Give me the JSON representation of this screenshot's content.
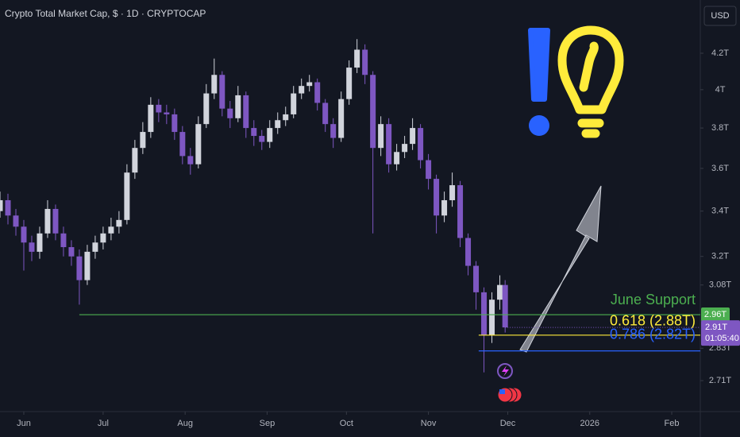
{
  "chart_data": {
    "type": "candlestick",
    "title": "Crypto Total Market Cap, $ · 1D · CRYPTOCAP",
    "currency": "USD",
    "log_scale": true,
    "grid": false,
    "up_color": "#d1d4dc",
    "down_color": "#7e57c2",
    "x": [
      -9,
      -6,
      -3,
      0,
      3,
      6,
      9,
      12,
      15,
      18,
      21,
      24,
      27,
      30,
      33,
      36,
      39,
      42,
      45,
      48,
      51,
      54,
      57,
      60,
      63,
      66,
      69,
      72,
      75,
      78,
      81,
      84,
      87,
      90,
      93,
      96,
      99,
      102,
      105,
      108,
      111,
      114,
      117,
      120,
      123,
      126,
      129,
      132,
      135,
      138,
      141,
      144,
      147,
      150,
      153,
      156,
      159,
      162,
      165,
      168,
      171,
      174,
      177,
      180,
      182
    ],
    "open": [
      3.4,
      3.45,
      3.38,
      3.33,
      3.26,
      3.22,
      3.3,
      3.41,
      3.3,
      3.24,
      3.2,
      3.1,
      3.22,
      3.26,
      3.3,
      3.33,
      3.36,
      3.58,
      3.7,
      3.78,
      3.92,
      3.88,
      3.87,
      3.78,
      3.66,
      3.62,
      3.82,
      3.98,
      4.08,
      3.9,
      3.85,
      3.97,
      3.8,
      3.76,
      3.73,
      3.8,
      3.84,
      3.87,
      3.98,
      4.02,
      4.04,
      3.93,
      3.82,
      3.75,
      3.95,
      4.12,
      4.22,
      4.08,
      3.7,
      3.82,
      3.62,
      3.68,
      3.72,
      3.8,
      3.64,
      3.55,
      3.38,
      3.45,
      3.52,
      3.28,
      3.16,
      3.05,
      2.88,
      3.02,
      3.08
    ],
    "high": [
      3.49,
      3.48,
      3.41,
      3.36,
      3.29,
      3.33,
      3.45,
      3.43,
      3.33,
      3.27,
      3.23,
      3.25,
      3.29,
      3.33,
      3.37,
      3.4,
      3.62,
      3.74,
      3.83,
      3.96,
      3.95,
      3.92,
      3.9,
      3.81,
      3.7,
      3.86,
      4.03,
      4.17,
      4.1,
      3.94,
      4.02,
      3.99,
      3.84,
      3.79,
      3.84,
      3.88,
      3.91,
      4.02,
      4.06,
      4.08,
      4.06,
      3.95,
      3.85,
      3.99,
      4.16,
      4.28,
      4.25,
      4.1,
      3.86,
      3.85,
      3.72,
      3.76,
      3.85,
      3.82,
      3.67,
      3.57,
      3.49,
      3.58,
      3.54,
      3.3,
      3.18,
      3.07,
      3.05,
      3.12,
      3.1
    ],
    "low": [
      3.37,
      3.34,
      3.29,
      3.14,
      3.18,
      3.19,
      3.28,
      3.27,
      3.2,
      3.16,
      3.0,
      3.08,
      3.19,
      3.23,
      3.27,
      3.3,
      3.34,
      3.55,
      3.67,
      3.75,
      3.83,
      3.82,
      3.74,
      3.62,
      3.57,
      3.6,
      3.8,
      3.95,
      3.86,
      3.8,
      3.83,
      3.75,
      3.71,
      3.69,
      3.7,
      3.77,
      3.81,
      3.85,
      3.95,
      3.99,
      3.89,
      3.78,
      3.7,
      3.73,
      3.92,
      4.09,
      4.03,
      3.3,
      3.66,
      3.58,
      3.59,
      3.65,
      3.69,
      3.6,
      3.5,
      3.3,
      3.35,
      3.42,
      3.24,
      3.12,
      2.98,
      2.74,
      2.85,
      2.98,
      2.89
    ],
    "close": [
      3.45,
      3.38,
      3.33,
      3.26,
      3.22,
      3.3,
      3.41,
      3.3,
      3.24,
      3.2,
      3.1,
      3.22,
      3.26,
      3.3,
      3.33,
      3.36,
      3.58,
      3.7,
      3.78,
      3.92,
      3.88,
      3.87,
      3.78,
      3.66,
      3.62,
      3.82,
      3.98,
      4.08,
      3.9,
      3.85,
      3.97,
      3.8,
      3.76,
      3.73,
      3.8,
      3.84,
      3.87,
      3.98,
      4.02,
      4.04,
      3.93,
      3.82,
      3.75,
      3.95,
      4.12,
      4.22,
      4.08,
      3.7,
      3.82,
      3.62,
      3.68,
      3.72,
      3.8,
      3.64,
      3.55,
      3.38,
      3.45,
      3.52,
      3.28,
      3.16,
      3.05,
      2.88,
      3.02,
      3.08,
      2.91
    ],
    "xlim": [
      -9,
      255.8
    ],
    "ylim": [
      2.6,
      4.51
    ],
    "xticks": [
      {
        "value": 0,
        "label": "Jun"
      },
      {
        "value": 30,
        "label": "Jul"
      },
      {
        "value": 61,
        "label": "Aug"
      },
      {
        "value": 92,
        "label": "Sep"
      },
      {
        "value": 122,
        "label": "Oct"
      },
      {
        "value": 153,
        "label": "Nov"
      },
      {
        "value": 183,
        "label": "Dec"
      },
      {
        "value": 214,
        "label": "2026"
      },
      {
        "value": 245,
        "label": "Feb"
      }
    ],
    "yticks": [
      {
        "value": 4.2,
        "label": "4.2T"
      },
      {
        "value": 4,
        "label": "4T"
      },
      {
        "value": 3.8,
        "label": "3.8T"
      },
      {
        "value": 3.6,
        "label": "3.6T"
      },
      {
        "value": 3.4,
        "label": "3.4T"
      },
      {
        "value": 3.2,
        "label": "3.2T"
      },
      {
        "value": 3.08,
        "label": "3.08T"
      },
      {
        "value": 2.83,
        "label": "2.83T"
      },
      {
        "value": 2.71,
        "label": "2.71T"
      }
    ],
    "levels": [
      {
        "name": "June Support",
        "value": 2.96,
        "label": "2.96T",
        "start": 21,
        "color": "#4caf50"
      },
      {
        "name": "0.618 (2.88T)",
        "value": 2.88,
        "start": 172,
        "color": "#ffeb3b"
      },
      {
        "name": "0.786 (2.82T)",
        "value": 2.82,
        "start": 172,
        "color": "#2962ff"
      }
    ],
    "price_label": "2.91T",
    "countdown": "01:05:40"
  }
}
